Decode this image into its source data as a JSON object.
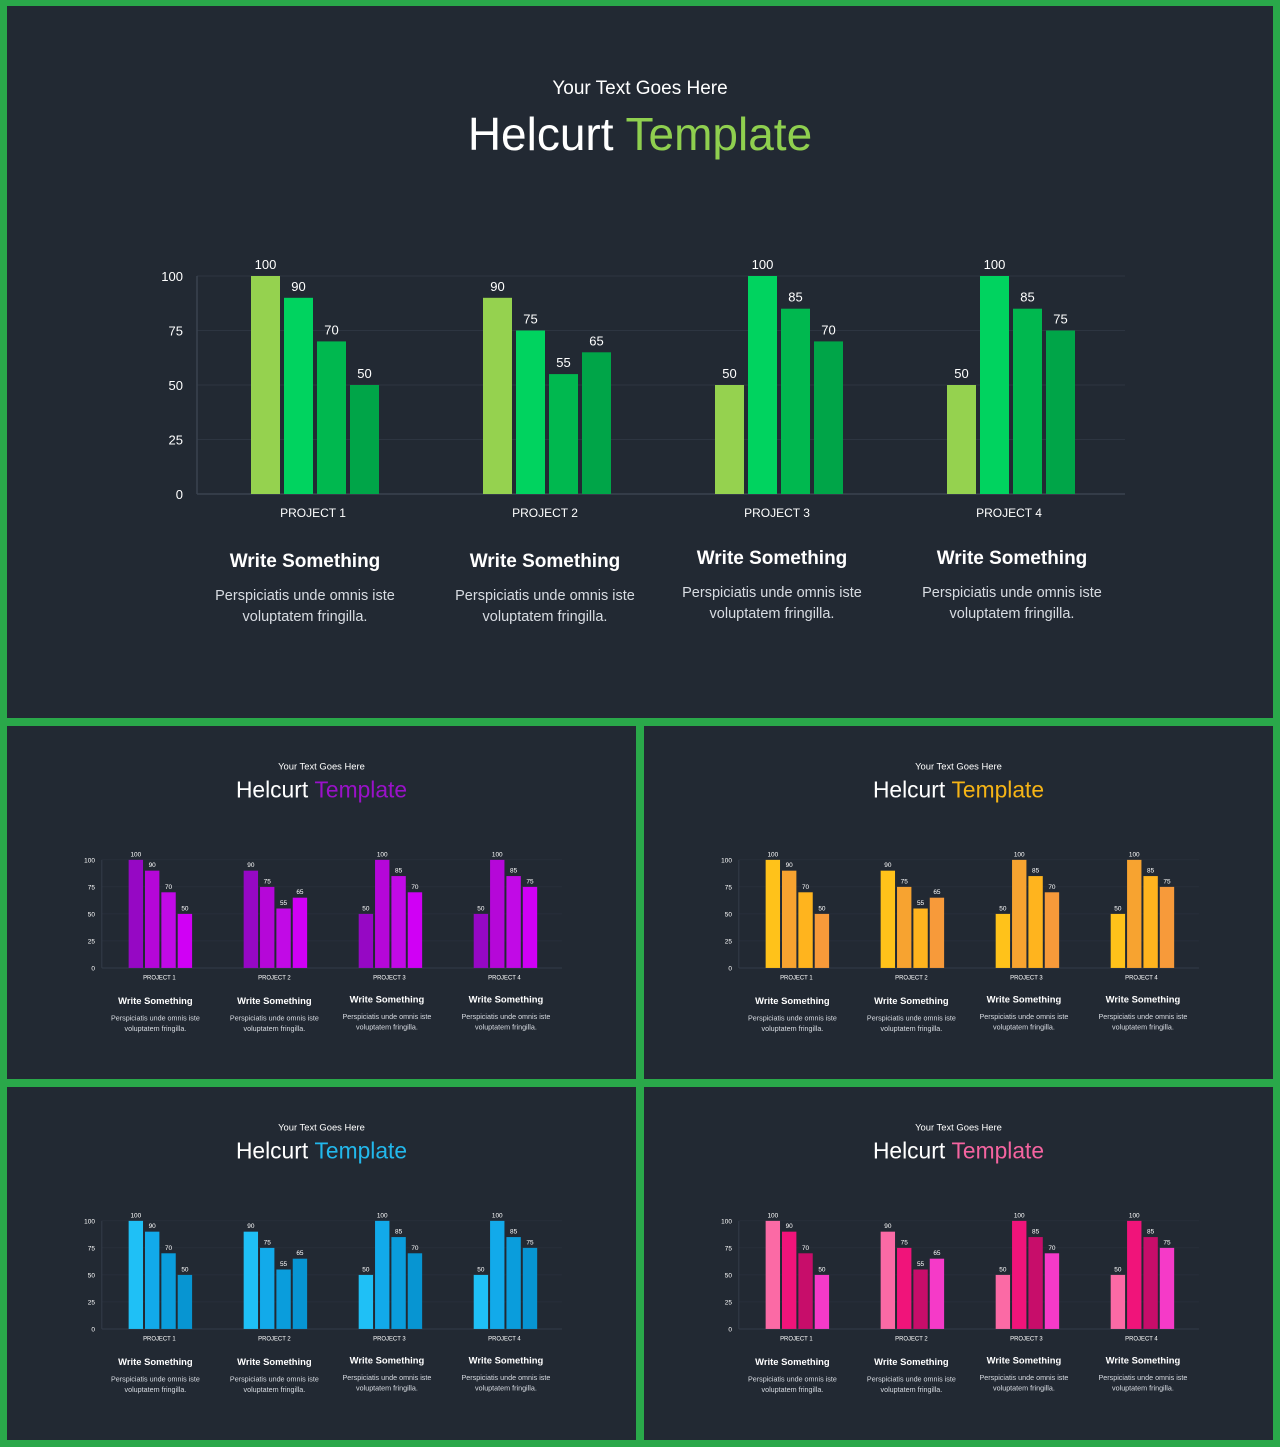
{
  "slides": [
    {
      "subtitle": "Your Text Goes Here",
      "title_main": "Helcurt",
      "title_accent": "Template",
      "accent": "#8fcf4f",
      "palette": [
        "#95d24f",
        "#00d35f",
        "#00b84f",
        "#00a548"
      ],
      "cards": [
        {
          "heading": "Write Something",
          "line1": "Perspiciatis unde omnis iste",
          "line2": "voluptatem fringilla."
        },
        {
          "heading": "Write Something",
          "line1": "Perspiciatis unde omnis iste",
          "line2": "voluptatem fringilla."
        },
        {
          "heading": "Write Something",
          "line1": "Perspiciatis unde omnis iste",
          "line2": "voluptatem fringilla."
        },
        {
          "heading": "Write Something",
          "line1": "Perspiciatis unde omnis iste",
          "line2": "voluptatem fringilla."
        }
      ]
    },
    {
      "subtitle": "Your Text Goes Here",
      "title_main": "Helcurt",
      "title_accent": "Template",
      "accent": "#9a11c9",
      "palette": [
        "#9608c4",
        "#b507d8",
        "#c10ae6",
        "#d000f5"
      ],
      "cards": [
        {
          "heading": "Write Something",
          "line1": "Perspiciatis unde omnis iste",
          "line2": "voluptatem fringilla."
        },
        {
          "heading": "Write Something",
          "line1": "Perspiciatis unde omnis iste",
          "line2": "voluptatem fringilla."
        },
        {
          "heading": "Write Something",
          "line1": "Perspiciatis unde omnis iste",
          "line2": "voluptatem fringilla."
        },
        {
          "heading": "Write Something",
          "line1": "Perspiciatis unde omnis iste",
          "line2": "voluptatem fringilla."
        }
      ]
    },
    {
      "subtitle": "Your Text Goes Here",
      "title_main": "Helcurt",
      "title_accent": "Template",
      "accent": "#f6b416",
      "palette": [
        "#ffc21a",
        "#f7a330",
        "#ffb41e",
        "#f79a3a"
      ],
      "cards": [
        {
          "heading": "Write Something",
          "line1": "Perspiciatis unde omnis iste",
          "line2": "voluptatem fringilla."
        },
        {
          "heading": "Write Something",
          "line1": "Perspiciatis unde omnis iste",
          "line2": "voluptatem fringilla."
        },
        {
          "heading": "Write Something",
          "line1": "Perspiciatis unde omnis iste",
          "line2": "voluptatem fringilla."
        },
        {
          "heading": "Write Something",
          "line1": "Perspiciatis unde omnis iste",
          "line2": "voluptatem fringilla."
        }
      ]
    },
    {
      "subtitle": "Your Text Goes Here",
      "title_main": "Helcurt",
      "title_accent": "Template",
      "accent": "#22b8ec",
      "palette": [
        "#1fc0f6",
        "#12aaea",
        "#0a9ddc",
        "#0795d2"
      ],
      "cards": [
        {
          "heading": "Write Something",
          "line1": "Perspiciatis unde omnis iste",
          "line2": "voluptatem fringilla."
        },
        {
          "heading": "Write Something",
          "line1": "Perspiciatis unde omnis iste",
          "line2": "voluptatem fringilla."
        },
        {
          "heading": "Write Something",
          "line1": "Perspiciatis unde omnis iste",
          "line2": "voluptatem fringilla."
        },
        {
          "heading": "Write Something",
          "line1": "Perspiciatis unde omnis iste",
          "line2": "voluptatem fringilla."
        }
      ]
    },
    {
      "subtitle": "Your Text Goes Here",
      "title_main": "Helcurt",
      "title_accent": "Template",
      "accent": "#f564a0",
      "palette": [
        "#fb6aa5",
        "#f0147a",
        "#c70d6a",
        "#f53ac8"
      ],
      "cards": [
        {
          "heading": "Write Something",
          "line1": "Perspiciatis unde omnis iste",
          "line2": "voluptatem fringilla."
        },
        {
          "heading": "Write Something",
          "line1": "Perspiciatis unde omnis iste",
          "line2": "voluptatem fringilla."
        },
        {
          "heading": "Write Something",
          "line1": "Perspiciatis unde omnis iste",
          "line2": "voluptatem fringilla."
        },
        {
          "heading": "Write Something",
          "line1": "Perspiciatis unde omnis iste",
          "line2": "voluptatem fringilla."
        }
      ]
    }
  ],
  "chart_data": {
    "type": "bar",
    "categories": [
      "PROJECT 1",
      "PROJECT 2",
      "PROJECT 3",
      "PROJECT 4"
    ],
    "series": [
      {
        "values": [
          100,
          90,
          50,
          50
        ]
      },
      {
        "values": [
          90,
          75,
          100,
          100
        ]
      },
      {
        "values": [
          70,
          55,
          85,
          85
        ]
      },
      {
        "values": [
          50,
          65,
          70,
          75
        ]
      }
    ],
    "yticks": [
      "0",
      "25",
      "50",
      "75",
      "100"
    ],
    "ylim": [
      0,
      100
    ],
    "grid": true,
    "data_labels": true
  }
}
